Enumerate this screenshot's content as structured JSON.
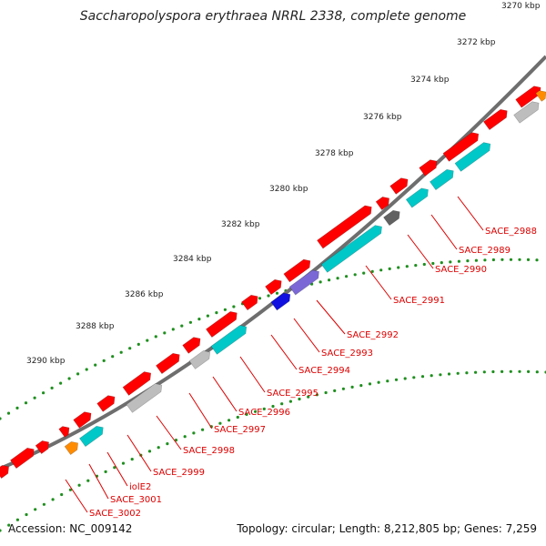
{
  "title": "Saccharopolyspora erythraea NRRL 2338, complete genome",
  "footer": {
    "accession": "Accession: NC_009142",
    "summary": "Topology: circular; Length: 8,212,805 bp; Genes: 7,259"
  },
  "colors": {
    "background": "#ffffff",
    "backbone": "#6e6e6e",
    "forward_gene": "#ff0000",
    "cds_match": "#00c8c8",
    "hypothetical": "#bdbdbd",
    "dark_feature": "#616161",
    "blue_feature": "#1010e0",
    "purple_feature": "#7b68d6",
    "orange_feature": "#ff8c00",
    "tick_dots": "#1f8f1f",
    "label_text": "#dd0000"
  },
  "ticks": [
    "3270 kbp",
    "3272 kbp",
    "3274 kbp",
    "3276 kbp",
    "3278 kbp",
    "3280 kbp",
    "3282 kbp",
    "3284 kbp",
    "3286 kbp",
    "3288 kbp",
    "3290 kbp"
  ],
  "gene_labels": [
    "SACE_2988",
    "SACE_2989",
    "SACE_2990",
    "SACE_2991",
    "SACE_2992",
    "SACE_2993",
    "SACE_2994",
    "SACE_2995",
    "SACE_2996",
    "SACE_2997",
    "SACE_2998",
    "SACE_2999",
    "iolE2",
    "SACE_3001",
    "SACE_3002"
  ]
}
